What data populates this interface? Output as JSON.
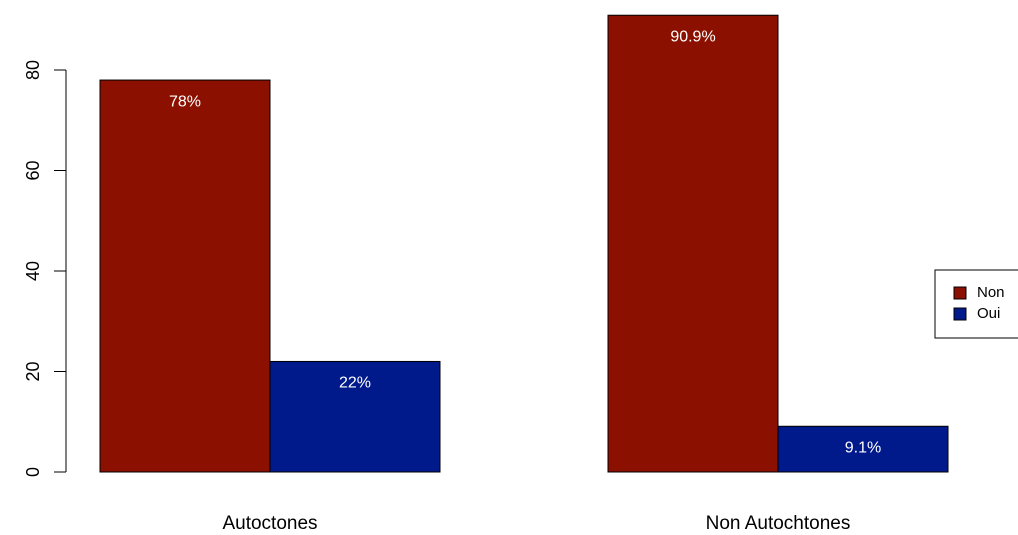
{
  "chart_data": {
    "type": "bar",
    "title": "",
    "xlabel": "",
    "ylabel": "",
    "ylim": [
      0,
      92
    ],
    "y_ticks": [
      0,
      20,
      40,
      60,
      80
    ],
    "y_tick_labels": [
      "0",
      "20",
      "40",
      "60",
      "80"
    ],
    "categories": [
      "Autoctones",
      "Non Autochtones"
    ],
    "series": [
      {
        "name": "Non",
        "color": "#8B1000",
        "values": [
          78,
          90.9
        ],
        "labels": [
          "78%",
          "90.9%"
        ]
      },
      {
        "name": "Oui",
        "color": "#001A8B",
        "values": [
          22,
          9.1
        ],
        "labels": [
          "22%",
          "9.1%"
        ]
      }
    ],
    "legend": {
      "position": "right",
      "entries": [
        "Non",
        "Oui"
      ]
    },
    "grid": false
  }
}
